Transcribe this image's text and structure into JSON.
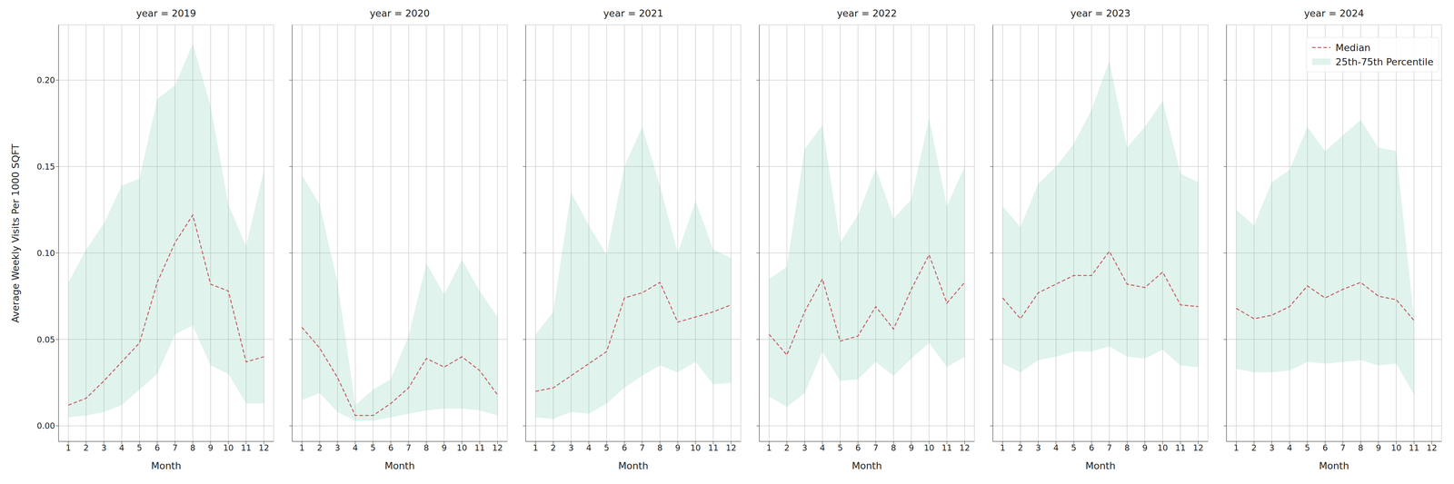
{
  "chart_data": [
    {
      "type": "line",
      "title": "year = 2019",
      "xlabel": "Month",
      "ylabel": "Average Weekly Visits Per 1000 SQFT",
      "x": [
        1,
        2,
        3,
        4,
        5,
        6,
        7,
        8,
        9,
        10,
        11,
        12
      ],
      "xlim": [
        0.45,
        12.55
      ],
      "xticks": [
        1,
        2,
        3,
        4,
        5,
        6,
        7,
        8,
        9,
        10,
        11,
        12
      ],
      "ylim": [
        -0.009,
        0.232
      ],
      "yticks": [
        {
          "value": 0,
          "label": "0.00"
        },
        {
          "value": 0.05,
          "label": "0.05"
        },
        {
          "value": 0.1,
          "label": "0.10"
        },
        {
          "value": 0.15,
          "label": "0.15"
        },
        {
          "value": 0.2,
          "label": "0.20"
        }
      ],
      "grid": true,
      "series": [
        {
          "name": "25th-75th Percentile",
          "type": "area",
          "color": "#66c2a5",
          "low": [
            0.005,
            0.006,
            0.008,
            0.012,
            0.021,
            0.03,
            0.053,
            0.058,
            0.035,
            0.03,
            0.013,
            0.013
          ],
          "high": [
            0.083,
            0.102,
            0.117,
            0.139,
            0.143,
            0.189,
            0.197,
            0.221,
            0.185,
            0.128,
            0.104,
            0.148
          ]
        },
        {
          "name": "Median",
          "type": "line",
          "color": "#c44e52",
          "line_style": "dashed",
          "values": [
            0.012,
            0.016,
            0.026,
            0.037,
            0.048,
            0.083,
            0.106,
            0.122,
            0.082,
            0.078,
            0.037,
            0.04
          ]
        }
      ]
    },
    {
      "type": "line",
      "title": "year = 2020",
      "xlabel": "Month",
      "x": [
        1,
        2,
        3,
        4,
        5,
        6,
        7,
        8,
        9,
        10,
        11,
        12
      ],
      "xlim": [
        0.45,
        12.55
      ],
      "xticks": [
        1,
        2,
        3,
        4,
        5,
        6,
        7,
        8,
        9,
        10,
        11,
        12
      ],
      "ylim": [
        -0.009,
        0.232
      ],
      "yticks": [
        {
          "value": 0,
          "label": "0.00"
        },
        {
          "value": 0.05,
          "label": "0.05"
        },
        {
          "value": 0.1,
          "label": "0.10"
        },
        {
          "value": 0.15,
          "label": "0.15"
        },
        {
          "value": 0.2,
          "label": "0.20"
        }
      ],
      "grid": true,
      "tick_labels": "x",
      "series": [
        {
          "name": "25th-75th Percentile",
          "type": "area",
          "color": "#66c2a5",
          "low": [
            0.015,
            0.019,
            0.008,
            0.003,
            0.003,
            0.005,
            0.007,
            0.009,
            0.01,
            0.01,
            0.009,
            0.006
          ],
          "high": [
            0.145,
            0.128,
            0.083,
            0.012,
            0.021,
            0.027,
            0.052,
            0.094,
            0.076,
            0.096,
            0.078,
            0.063
          ]
        },
        {
          "name": "Median",
          "type": "line",
          "color": "#c44e52",
          "line_style": "dashed",
          "values": [
            0.057,
            0.045,
            0.028,
            0.006,
            0.006,
            0.013,
            0.022,
            0.039,
            0.034,
            0.04,
            0.032,
            0.018
          ]
        }
      ]
    },
    {
      "type": "line",
      "title": "year = 2021",
      "xlabel": "Month",
      "x": [
        1,
        2,
        3,
        4,
        5,
        6,
        7,
        8,
        9,
        10,
        11,
        12
      ],
      "xlim": [
        0.45,
        12.55
      ],
      "xticks": [
        1,
        2,
        3,
        4,
        5,
        6,
        7,
        8,
        9,
        10,
        11,
        12
      ],
      "ylim": [
        -0.009,
        0.232
      ],
      "yticks": [
        {
          "value": 0,
          "label": "0.00"
        },
        {
          "value": 0.05,
          "label": "0.05"
        },
        {
          "value": 0.1,
          "label": "0.10"
        },
        {
          "value": 0.15,
          "label": "0.15"
        },
        {
          "value": 0.2,
          "label": "0.20"
        }
      ],
      "grid": true,
      "tick_labels": "x",
      "series": [
        {
          "name": "25th-75th Percentile",
          "type": "area",
          "color": "#66c2a5",
          "low": [
            0.005,
            0.004,
            0.008,
            0.007,
            0.013,
            0.022,
            0.029,
            0.035,
            0.031,
            0.037,
            0.024,
            0.025
          ],
          "high": [
            0.053,
            0.066,
            0.135,
            0.116,
            0.099,
            0.15,
            0.173,
            0.139,
            0.1,
            0.13,
            0.102,
            0.097
          ]
        },
        {
          "name": "Median",
          "type": "line",
          "color": "#c44e52",
          "line_style": "dashed",
          "values": [
            0.02,
            0.022,
            0.029,
            0.036,
            0.043,
            0.074,
            0.077,
            0.083,
            0.06,
            0.063,
            0.066,
            0.07
          ]
        }
      ]
    },
    {
      "type": "line",
      "title": "year = 2022",
      "xlabel": "Month",
      "x": [
        1,
        2,
        3,
        4,
        5,
        6,
        7,
        8,
        9,
        10,
        11,
        12
      ],
      "xlim": [
        0.45,
        12.55
      ],
      "xticks": [
        1,
        2,
        3,
        4,
        5,
        6,
        7,
        8,
        9,
        10,
        11,
        12
      ],
      "ylim": [
        -0.009,
        0.232
      ],
      "yticks": [
        {
          "value": 0,
          "label": "0.00"
        },
        {
          "value": 0.05,
          "label": "0.05"
        },
        {
          "value": 0.1,
          "label": "0.10"
        },
        {
          "value": 0.15,
          "label": "0.15"
        },
        {
          "value": 0.2,
          "label": "0.20"
        }
      ],
      "grid": true,
      "tick_labels": "x",
      "series": [
        {
          "name": "25th-75th Percentile",
          "type": "area",
          "color": "#66c2a5",
          "low": [
            0.017,
            0.011,
            0.019,
            0.043,
            0.026,
            0.027,
            0.037,
            0.029,
            0.039,
            0.048,
            0.034,
            0.04
          ],
          "high": [
            0.085,
            0.092,
            0.16,
            0.174,
            0.106,
            0.122,
            0.149,
            0.12,
            0.131,
            0.178,
            0.127,
            0.15
          ]
        },
        {
          "name": "Median",
          "type": "line",
          "color": "#c44e52",
          "line_style": "dashed",
          "values": [
            0.053,
            0.041,
            0.066,
            0.085,
            0.049,
            0.052,
            0.069,
            0.056,
            0.079,
            0.099,
            0.071,
            0.083
          ]
        }
      ]
    },
    {
      "type": "line",
      "title": "year = 2023",
      "xlabel": "Month",
      "x": [
        1,
        2,
        3,
        4,
        5,
        6,
        7,
        8,
        9,
        10,
        11,
        12
      ],
      "xlim": [
        0.45,
        12.55
      ],
      "xticks": [
        1,
        2,
        3,
        4,
        5,
        6,
        7,
        8,
        9,
        10,
        11,
        12
      ],
      "ylim": [
        -0.009,
        0.232
      ],
      "yticks": [
        {
          "value": 0,
          "label": "0.00"
        },
        {
          "value": 0.05,
          "label": "0.05"
        },
        {
          "value": 0.1,
          "label": "0.10"
        },
        {
          "value": 0.15,
          "label": "0.15"
        },
        {
          "value": 0.2,
          "label": "0.20"
        }
      ],
      "grid": true,
      "tick_labels": "x",
      "series": [
        {
          "name": "25th-75th Percentile",
          "type": "area",
          "color": "#66c2a5",
          "low": [
            0.036,
            0.031,
            0.038,
            0.04,
            0.043,
            0.043,
            0.046,
            0.04,
            0.039,
            0.044,
            0.035,
            0.034
          ],
          "high": [
            0.127,
            0.115,
            0.14,
            0.15,
            0.163,
            0.183,
            0.211,
            0.161,
            0.173,
            0.188,
            0.146,
            0.141
          ]
        },
        {
          "name": "Median",
          "type": "line",
          "color": "#c44e52",
          "line_style": "dashed",
          "values": [
            0.074,
            0.062,
            0.077,
            0.082,
            0.087,
            0.087,
            0.101,
            0.082,
            0.08,
            0.089,
            0.07,
            0.069
          ]
        }
      ]
    },
    {
      "type": "line",
      "title": "year = 2024",
      "xlabel": "Month",
      "x": [
        1,
        2,
        3,
        4,
        5,
        6,
        7,
        8,
        9,
        10,
        11,
        12
      ],
      "xlim": [
        0.45,
        12.55
      ],
      "xticks": [
        1,
        2,
        3,
        4,
        5,
        6,
        7,
        8,
        9,
        10,
        11,
        12
      ],
      "ylim": [
        -0.009,
        0.232
      ],
      "yticks": [
        {
          "value": 0,
          "label": "0.00"
        },
        {
          "value": 0.05,
          "label": "0.05"
        },
        {
          "value": 0.1,
          "label": "0.10"
        },
        {
          "value": 0.15,
          "label": "0.15"
        },
        {
          "value": 0.2,
          "label": "0.20"
        }
      ],
      "grid": true,
      "tick_labels": "x",
      "legend": "upper right",
      "series": [
        {
          "name": "25th-75th Percentile",
          "type": "area",
          "color": "#66c2a5",
          "low": [
            0.033,
            0.031,
            0.031,
            0.032,
            0.037,
            0.036,
            0.037,
            0.038,
            0.035,
            0.036,
            0.018,
            null
          ],
          "high": [
            0.125,
            0.116,
            0.141,
            0.148,
            0.173,
            0.159,
            0.168,
            0.177,
            0.161,
            0.159,
            0.062,
            null
          ]
        },
        {
          "name": "Median",
          "type": "line",
          "color": "#c44e52",
          "line_style": "dashed",
          "values": [
            0.068,
            0.062,
            0.064,
            0.069,
            0.081,
            0.074,
            0.079,
            0.083,
            0.075,
            0.073,
            0.061,
            null
          ]
        }
      ]
    }
  ]
}
